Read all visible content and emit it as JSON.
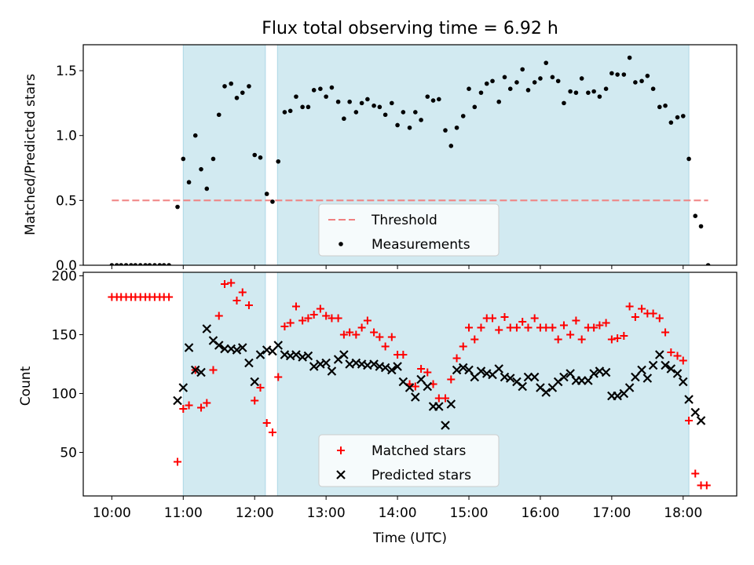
{
  "title": "Flux total observing time = 6.92 h",
  "colors": {
    "shade": "#add8e6",
    "threshold": "#f08080",
    "matched": "#ff0000",
    "predicted": "#000000",
    "measurement": "#000000"
  },
  "chart_data": [
    {
      "type": "scatter",
      "ylabel": "Matched/Predicted stars",
      "ylim": [
        0,
        1.7
      ],
      "yticks": [
        0.0,
        0.5,
        1.0,
        1.5
      ],
      "ytick_labels": [
        "0.0",
        "0.5",
        "1.0",
        "1.5"
      ],
      "xlim": [
        9.6,
        18.75
      ],
      "shaded_ranges": [
        [
          11.0,
          12.15
        ],
        [
          12.32,
          18.08
        ]
      ],
      "threshold": {
        "name": "Threshold",
        "y": 0.5,
        "x": [
          10.0,
          18.35
        ],
        "style": "dashed"
      },
      "legend": {
        "position": "lower-center",
        "entries": [
          "Threshold",
          "Measurements"
        ]
      },
      "series": [
        {
          "name": "Measurements",
          "marker": "dot",
          "x": [
            10.0,
            10.07,
            10.13,
            10.2,
            10.27,
            10.33,
            10.4,
            10.47,
            10.53,
            10.6,
            10.67,
            10.73,
            10.8,
            10.92,
            11.0,
            11.08,
            11.17,
            11.25,
            11.33,
            11.42,
            11.5,
            11.58,
            11.67,
            11.75,
            11.83,
            11.92,
            12.0,
            12.08,
            12.17,
            12.25,
            12.33,
            12.42,
            12.5,
            12.58,
            12.67,
            12.75,
            12.83,
            12.92,
            13.0,
            13.08,
            13.17,
            13.25,
            13.33,
            13.42,
            13.5,
            13.58,
            13.67,
            13.75,
            13.83,
            13.92,
            14.0,
            14.08,
            14.17,
            14.25,
            14.33,
            14.42,
            14.5,
            14.58,
            14.67,
            14.75,
            14.83,
            14.92,
            15.0,
            15.08,
            15.17,
            15.25,
            15.33,
            15.42,
            15.5,
            15.58,
            15.67,
            15.75,
            15.83,
            15.92,
            16.0,
            16.08,
            16.17,
            16.25,
            16.33,
            16.42,
            16.5,
            16.58,
            16.67,
            16.75,
            16.83,
            16.92,
            17.0,
            17.08,
            17.17,
            17.25,
            17.33,
            17.42,
            17.5,
            17.58,
            17.67,
            17.75,
            17.83,
            17.92,
            18.0,
            18.08,
            18.17,
            18.25,
            18.35
          ],
          "y": [
            0.0,
            0.0,
            0.0,
            0.0,
            0.0,
            0.0,
            0.0,
            0.0,
            0.0,
            0.0,
            0.0,
            0.0,
            0.0,
            0.45,
            0.82,
            0.64,
            1.0,
            0.74,
            0.59,
            0.82,
            1.16,
            1.38,
            1.4,
            1.29,
            1.33,
            1.38,
            0.85,
            0.83,
            0.55,
            0.49,
            0.8,
            1.18,
            1.19,
            1.3,
            1.22,
            1.22,
            1.35,
            1.36,
            1.3,
            1.37,
            1.26,
            1.13,
            1.26,
            1.18,
            1.25,
            1.28,
            1.23,
            1.22,
            1.16,
            1.25,
            1.08,
            1.18,
            1.06,
            1.18,
            1.12,
            1.3,
            1.27,
            1.28,
            1.04,
            0.92,
            1.06,
            1.15,
            1.36,
            1.22,
            1.33,
            1.4,
            1.42,
            1.26,
            1.45,
            1.36,
            1.41,
            1.51,
            1.35,
            1.41,
            1.44,
            1.56,
            1.45,
            1.42,
            1.25,
            1.34,
            1.33,
            1.44,
            1.33,
            1.34,
            1.3,
            1.36,
            1.48,
            1.47,
            1.47,
            1.6,
            1.41,
            1.42,
            1.46,
            1.36,
            1.22,
            1.23,
            1.1,
            1.14,
            1.15,
            0.82,
            0.38,
            0.3,
            0.0
          ]
        }
      ]
    },
    {
      "type": "scatter",
      "xlabel": "Time (UTC)",
      "ylabel": "Count",
      "ylim": [
        13,
        203
      ],
      "yticks": [
        50,
        100,
        150,
        200
      ],
      "ytick_labels": [
        "50",
        "100",
        "150",
        "200"
      ],
      "xlim": [
        9.6,
        18.75
      ],
      "xticks": [
        10,
        11,
        12,
        13,
        14,
        15,
        16,
        17,
        18
      ],
      "xtick_labels": [
        "10:00",
        "11:00",
        "12:00",
        "13:00",
        "14:00",
        "15:00",
        "16:00",
        "17:00",
        "18:00"
      ],
      "shaded_ranges": [
        [
          11.0,
          12.15
        ],
        [
          12.32,
          18.08
        ]
      ],
      "legend": {
        "position": "lower-center",
        "entries": [
          "Matched stars",
          "Predicted stars"
        ]
      },
      "series": [
        {
          "name": "Matched stars",
          "marker": "plus",
          "x": [
            10.0,
            10.07,
            10.13,
            10.2,
            10.27,
            10.33,
            10.4,
            10.47,
            10.53,
            10.6,
            10.67,
            10.73,
            10.8,
            10.92,
            11.0,
            11.08,
            11.17,
            11.25,
            11.33,
            11.42,
            11.5,
            11.58,
            11.67,
            11.75,
            11.83,
            11.92,
            12.0,
            12.08,
            12.17,
            12.25,
            12.33,
            12.42,
            12.5,
            12.58,
            12.67,
            12.75,
            12.83,
            12.92,
            13.0,
            13.08,
            13.17,
            13.25,
            13.33,
            13.42,
            13.5,
            13.58,
            13.67,
            13.75,
            13.83,
            13.92,
            14.0,
            14.08,
            14.17,
            14.25,
            14.33,
            14.42,
            14.5,
            14.58,
            14.67,
            14.75,
            14.83,
            14.92,
            15.0,
            15.08,
            15.17,
            15.25,
            15.33,
            15.42,
            15.5,
            15.58,
            15.67,
            15.75,
            15.83,
            15.92,
            16.0,
            16.08,
            16.17,
            16.25,
            16.33,
            16.42,
            16.5,
            16.58,
            16.67,
            16.75,
            16.83,
            16.92,
            17.0,
            17.08,
            17.17,
            17.25,
            17.33,
            17.42,
            17.5,
            17.58,
            17.67,
            17.75,
            17.83,
            17.92,
            18.0,
            18.08,
            18.17,
            18.25,
            18.33
          ],
          "y": [
            182,
            182,
            182,
            182,
            182,
            182,
            182,
            182,
            182,
            182,
            182,
            182,
            182,
            42,
            87,
            90,
            120,
            88,
            92,
            120,
            166,
            193,
            194,
            179,
            186,
            175,
            94,
            105,
            75,
            67,
            114,
            157,
            160,
            174,
            162,
            164,
            167,
            172,
            166,
            164,
            164,
            150,
            152,
            150,
            156,
            162,
            152,
            148,
            140,
            148,
            133,
            133,
            108,
            106,
            121,
            118,
            108,
            96,
            96,
            112,
            130,
            140,
            156,
            146,
            156,
            164,
            164,
            154,
            165,
            156,
            156,
            161,
            156,
            164,
            156,
            156,
            156,
            146,
            158,
            150,
            162,
            146,
            156,
            156,
            158,
            160,
            146,
            147,
            149,
            174,
            165,
            172,
            168,
            168,
            164,
            152,
            135,
            132,
            128,
            77,
            32,
            22,
            22
          ]
        },
        {
          "name": "Predicted stars",
          "marker": "x",
          "x": [
            10.92,
            11.0,
            11.08,
            11.17,
            11.25,
            11.33,
            11.42,
            11.5,
            11.58,
            11.67,
            11.75,
            11.83,
            11.92,
            12.0,
            12.08,
            12.17,
            12.25,
            12.33,
            12.42,
            12.5,
            12.58,
            12.67,
            12.75,
            12.83,
            12.92,
            13.0,
            13.08,
            13.17,
            13.25,
            13.33,
            13.42,
            13.5,
            13.58,
            13.67,
            13.75,
            13.83,
            13.92,
            14.0,
            14.08,
            14.17,
            14.25,
            14.33,
            14.42,
            14.5,
            14.58,
            14.67,
            14.75,
            14.83,
            14.92,
            15.0,
            15.08,
            15.17,
            15.25,
            15.33,
            15.42,
            15.5,
            15.58,
            15.67,
            15.75,
            15.83,
            15.92,
            16.0,
            16.08,
            16.17,
            16.25,
            16.33,
            16.42,
            16.5,
            16.58,
            16.67,
            16.75,
            16.83,
            16.92,
            17.0,
            17.08,
            17.17,
            17.25,
            17.33,
            17.42,
            17.5,
            17.58,
            17.67,
            17.75,
            17.83,
            17.92,
            18.0,
            18.08,
            18.17,
            18.25
          ],
          "y": [
            94,
            105,
            139,
            120,
            118,
            155,
            145,
            141,
            138,
            138,
            137,
            139,
            126,
            110,
            133,
            137,
            136,
            141,
            133,
            132,
            133,
            131,
            132,
            123,
            125,
            126,
            119,
            129,
            133,
            125,
            126,
            125,
            124,
            125,
            123,
            122,
            120,
            123,
            110,
            105,
            97,
            112,
            106,
            89,
            89,
            73,
            91,
            120,
            122,
            120,
            114,
            119,
            117,
            116,
            121,
            114,
            113,
            110,
            106,
            114,
            114,
            105,
            101,
            105,
            110,
            114,
            117,
            111,
            111,
            111,
            117,
            119,
            118,
            98,
            98,
            100,
            105,
            114,
            120,
            113,
            124,
            133,
            124,
            121,
            117,
            110,
            95,
            84,
            77
          ]
        }
      ]
    }
  ]
}
